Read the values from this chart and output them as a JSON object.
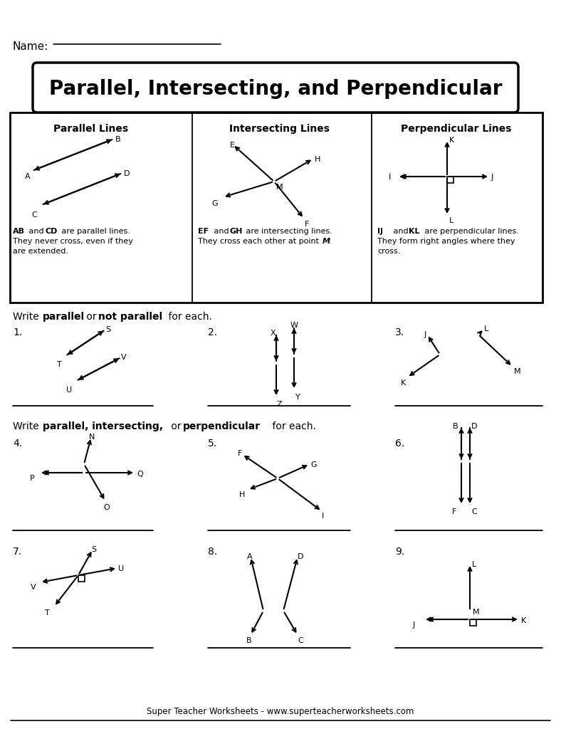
{
  "title": "Parallel, Intersecting, and Perpendicular",
  "name_label": "Name:",
  "footer": "Super Teacher Worksheets - www.superteacherworksheets.com",
  "bg_color": "#ffffff"
}
